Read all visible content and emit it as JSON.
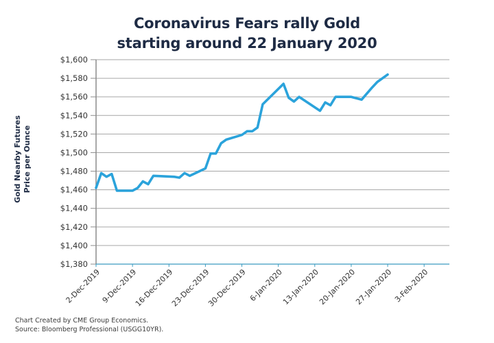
{
  "title_lines": [
    "Coronavirus Fears rally Gold",
    "starting around 22 January 2020"
  ],
  "footer": {
    "line1": "Chart Created by CME Group Economics.",
    "line2": "Source:  Bloomberg Professional (USGG10YR)."
  },
  "colors": {
    "line": "#2ba3db",
    "title": "#1e2b44",
    "grid": "#a6a6a6",
    "xaxis": "#3a9bc1"
  },
  "chart_data": {
    "type": "line",
    "title": "Coronavirus Fears rally Gold starting around 22 January 2020",
    "xlabel": "",
    "ylabel_lines": [
      "Gold Nearby Futures",
      "Price per Ounce"
    ],
    "ylim": [
      1380,
      1600
    ],
    "yticks": [
      1380,
      1400,
      1420,
      1440,
      1460,
      1480,
      1500,
      1520,
      1540,
      1560,
      1580,
      1600
    ],
    "ytick_labels": [
      "$1,380",
      "$1,400",
      "$1,420",
      "$1,440",
      "$1,460",
      "$1,480",
      "$1,500",
      "$1,520",
      "$1,540",
      "$1,560",
      "$1,580",
      "$1,600"
    ],
    "x_unit": "days since 2-Dec-2019",
    "xlim": [
      0,
      68
    ],
    "xticks": [
      0,
      7,
      14,
      21,
      28,
      35,
      42,
      49,
      56,
      63
    ],
    "xtick_labels": [
      "2-Dec-2019",
      "9-Dec-2019",
      "16-Dec-2019",
      "23-Dec-2019",
      "30-Dec-2019",
      "6-Jan-2020",
      "13-Jan-2020",
      "20-Jan-2020",
      "27-Jan-2020",
      "3-Feb-2020"
    ],
    "grid": true,
    "legend": "none",
    "series": [
      {
        "name": "Gold Nearby Futures",
        "x": [
          0,
          1,
          2,
          3,
          4,
          7,
          8,
          9,
          10,
          11,
          15,
          16,
          17,
          18,
          21,
          22,
          23,
          24,
          25,
          28,
          29,
          30,
          31,
          32,
          36,
          37,
          38,
          39,
          43,
          44,
          45,
          46,
          49,
          51,
          53,
          54,
          56
        ],
        "values": [
          1462,
          1478,
          1474,
          1477,
          1459,
          1459,
          1462,
          1469,
          1466,
          1475,
          1474,
          1473,
          1478,
          1475,
          1483,
          1499,
          1499,
          1510,
          1514,
          1519,
          1523,
          1523,
          1527,
          1552,
          1574,
          1559,
          1555,
          1560,
          1545,
          1554,
          1551,
          1560,
          1560,
          1557,
          1570,
          1576,
          1584
        ]
      }
    ]
  }
}
